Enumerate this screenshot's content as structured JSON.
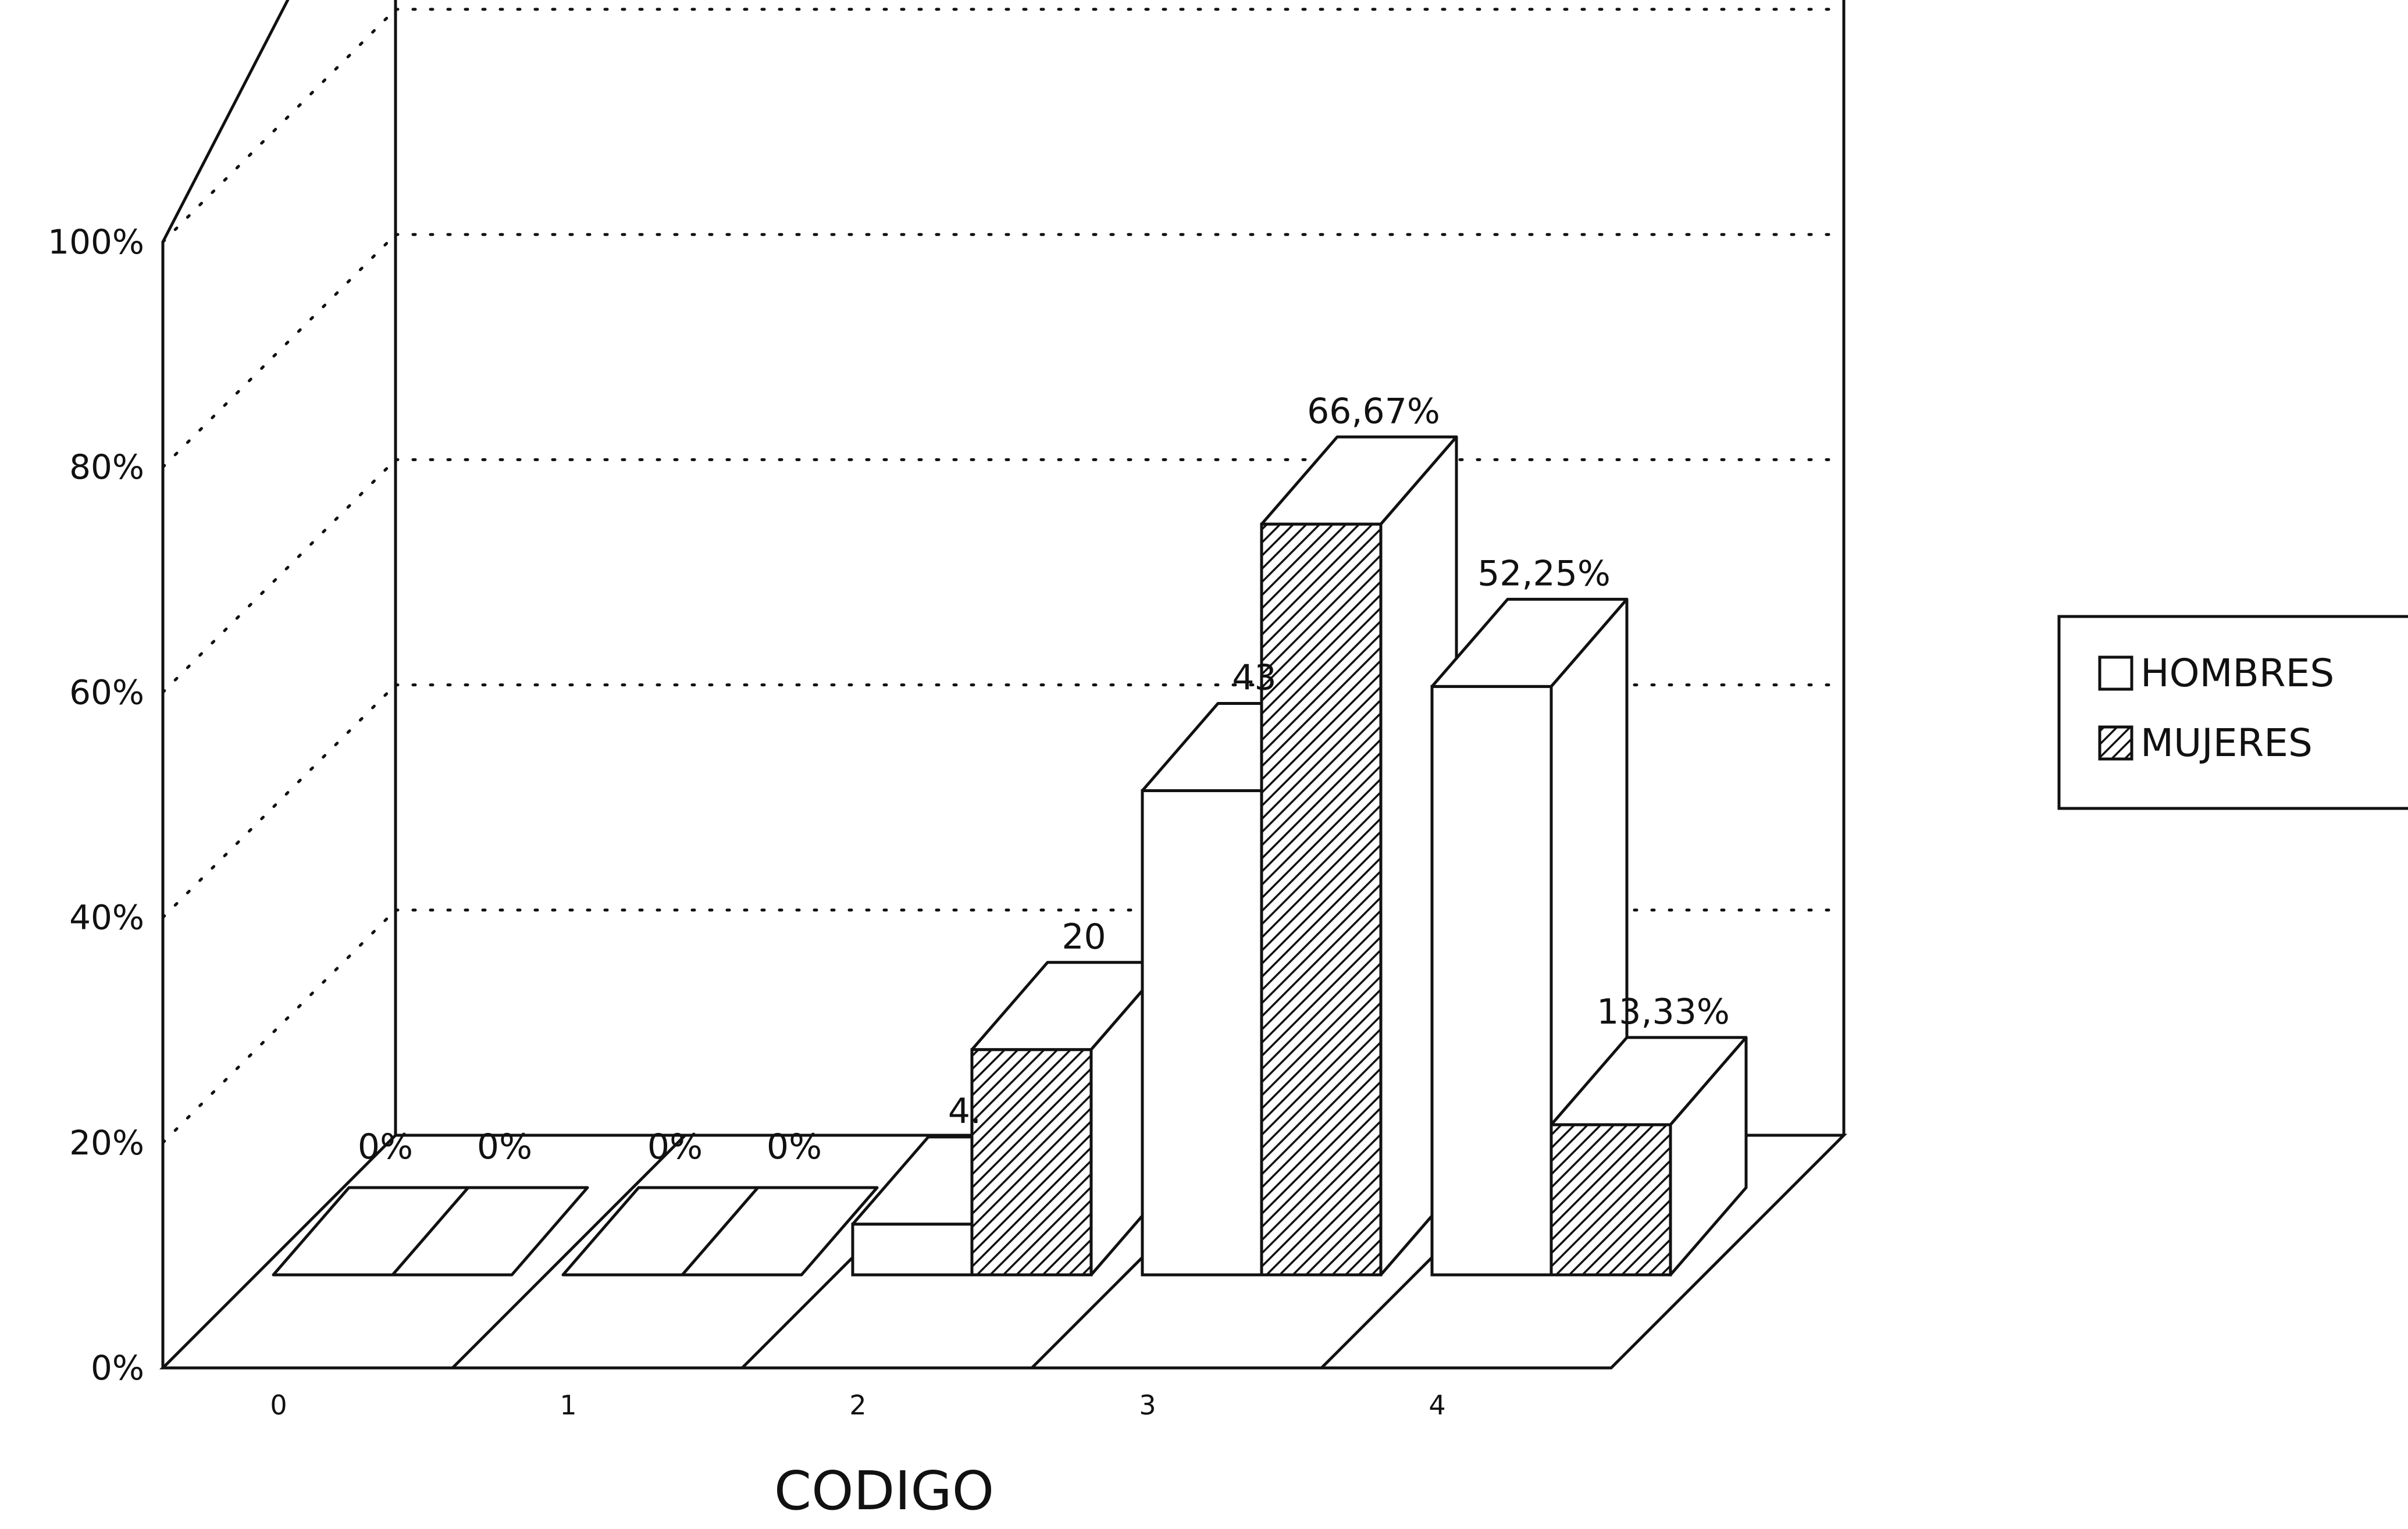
{
  "chart_data": {
    "type": "bar",
    "style": "3d-clustered-column",
    "xlabel": "CODIGO",
    "ylabel": "",
    "ylim": [
      0,
      100
    ],
    "y_ticks": [
      "0%",
      "20%",
      "40%",
      "60%",
      "80%",
      "100%"
    ],
    "grid": true,
    "legend_position": "right",
    "categories": [
      "0",
      "1",
      "2",
      "3",
      "4"
    ],
    "series": [
      {
        "name": "HOMBRES",
        "values": [
          0,
          0,
          4.5,
          43,
          52.25
        ],
        "labels": [
          "0%",
          "0%",
          "4.",
          "43",
          "52,25%"
        ],
        "fill": "white"
      },
      {
        "name": "MUJERES",
        "values": [
          0,
          0,
          20,
          66.67,
          13.33
        ],
        "labels": [
          "0%",
          "0%",
          "20",
          "66,67%",
          "13,33%"
        ],
        "fill": "hatched"
      }
    ]
  }
}
